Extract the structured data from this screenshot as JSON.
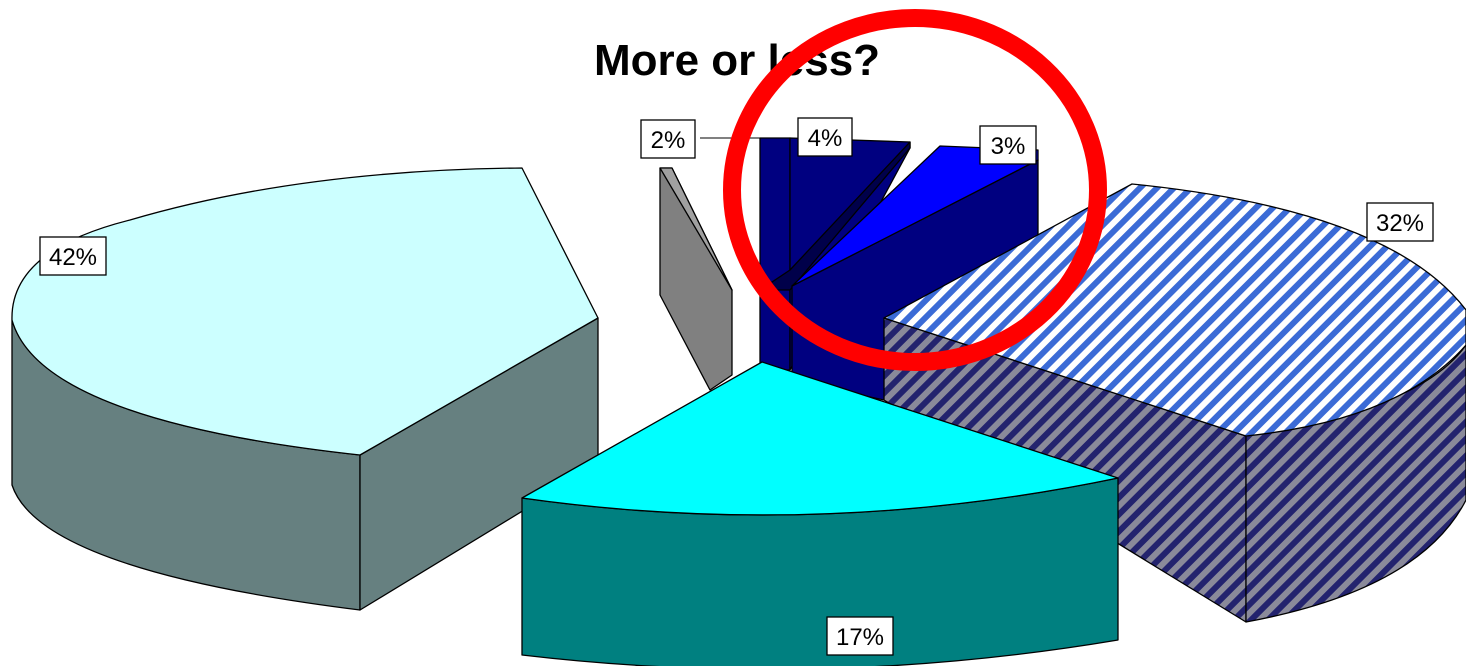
{
  "chart_data": {
    "type": "pie",
    "style": "3d-exploded",
    "title": "More or less?",
    "values": [
      42,
      17,
      32,
      3,
      4,
      2
    ],
    "labels": [
      "42%",
      "17%",
      "32%",
      "3%",
      "4%",
      "2%"
    ],
    "colors": {
      "top": [
        "#ccffff",
        "#00ffff",
        "hatch-blue-white",
        "#0000ff",
        "#000080",
        "#808080"
      ],
      "side": [
        "#668080",
        "#008080",
        "hatch-blue-gray",
        "#000080",
        "#00005a",
        "#6e6e6e"
      ]
    },
    "legend": "none",
    "annotation": "red circle around the 4% and 3% slices"
  }
}
